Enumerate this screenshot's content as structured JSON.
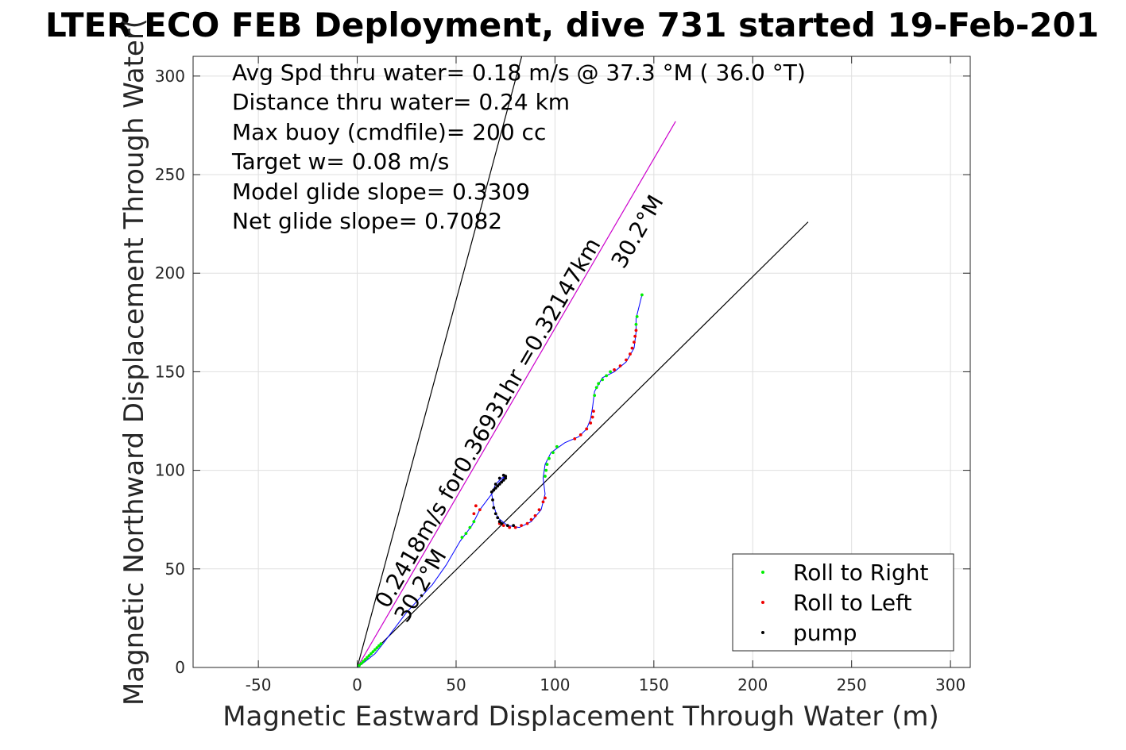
{
  "chart_data": {
    "type": "scatter",
    "title": "LTER ECO FEB Deployment, dive 731 started 19-Feb-201",
    "xlabel": "Magnetic Eastward Displacement Through Water (m)",
    "ylabel": "Magnetic Northward Displacement Through Water(",
    "xlim": [
      -83,
      310
    ],
    "ylim": [
      0,
      310
    ],
    "x_ticks": [
      -50,
      0,
      50,
      100,
      150,
      200,
      250,
      300
    ],
    "y_ticks": [
      0,
      50,
      100,
      150,
      200,
      250,
      300
    ],
    "grid": true,
    "legend_position": "bottom-right",
    "annotations": [
      "Avg Spd thru water=  0.18 m/s @  37.3 °M ( 36.0 °T)",
      "Distance thru water=  0.24 km",
      "Max buoy (cmdfile)= 200 cc",
      "Target w= 0.08 m/s",
      "Model glide slope= 0.3309",
      "Net glide slope= 0.7082"
    ],
    "rotated_labels": [
      {
        "text": "0.2418m/s for0.36931hr =0.32147km",
        "anchor": [
          10,
          30
        ]
      },
      {
        "text": "30.2°M",
        "anchor": [
          26,
          22
        ]
      },
      {
        "text": "30.2°M",
        "anchor": [
          135,
          208
        ]
      }
    ],
    "lines": [
      {
        "name": "left-heading",
        "color": "#000000",
        "points": [
          [
            0,
            0
          ],
          [
            84,
            313
          ]
        ]
      },
      {
        "name": "right-heading",
        "color": "#000000",
        "points": [
          [
            0,
            0
          ],
          [
            228,
            226
          ]
        ]
      },
      {
        "name": "course-line",
        "color": "#cc00cc",
        "points": [
          [
            0,
            0
          ],
          [
            161,
            277
          ]
        ]
      }
    ],
    "track": {
      "color": "#0000ff",
      "points": [
        [
          0,
          0
        ],
        [
          4,
          3
        ],
        [
          9,
          7
        ],
        [
          13,
          12
        ],
        [
          25,
          28
        ],
        [
          38,
          42
        ],
        [
          45,
          52
        ],
        [
          52,
          64
        ],
        [
          58,
          72
        ],
        [
          62,
          80
        ],
        [
          68,
          88
        ],
        [
          72,
          94
        ],
        [
          75,
          97
        ],
        [
          73,
          96
        ],
        [
          70,
          93
        ],
        [
          68,
          88
        ],
        [
          69,
          82
        ],
        [
          71,
          76
        ],
        [
          76,
          72
        ],
        [
          82,
          71
        ],
        [
          88,
          74
        ],
        [
          93,
          80
        ],
        [
          95,
          88
        ],
        [
          94,
          96
        ],
        [
          95,
          103
        ],
        [
          98,
          109
        ],
        [
          105,
          114
        ],
        [
          112,
          117
        ],
        [
          116,
          121
        ],
        [
          118,
          126
        ],
        [
          119,
          132
        ],
        [
          120,
          140
        ],
        [
          124,
          147
        ],
        [
          130,
          150
        ],
        [
          136,
          155
        ],
        [
          140,
          162
        ],
        [
          141,
          170
        ],
        [
          141,
          177
        ],
        [
          144,
          189
        ]
      ]
    },
    "series": [
      {
        "name": "Roll to Right",
        "color": "#00ee00",
        "x": [
          1,
          2,
          3,
          4,
          5,
          6,
          7,
          8,
          9,
          10,
          11,
          12,
          53,
          55,
          57,
          59,
          95,
          95.5,
          96,
          97,
          99,
          101,
          120,
          121,
          122,
          124,
          126,
          128,
          141,
          141.5,
          144
        ],
        "y": [
          1,
          2,
          3,
          4,
          5,
          6,
          7,
          8,
          9,
          10,
          11,
          12,
          66,
          68,
          71,
          74,
          97,
          100,
          103,
          106,
          109,
          112,
          138,
          142,
          144,
          146,
          148,
          150,
          174,
          178,
          189
        ]
      },
      {
        "name": "Roll to Left",
        "color": "#ee0000",
        "x": [
          62,
          60,
          59,
          72,
          74,
          77,
          80,
          83,
          86,
          88,
          90,
          92,
          94,
          95,
          110,
          113,
          116,
          118,
          119,
          119.5,
          130,
          133,
          136,
          138,
          139,
          140,
          140.5,
          141
        ],
        "y": [
          80,
          82,
          78,
          73,
          72,
          71,
          71,
          72,
          73,
          75,
          77,
          80,
          84,
          86,
          116,
          118,
          121,
          124,
          127,
          130,
          151,
          153,
          156,
          159,
          162,
          165,
          168,
          171
        ]
      },
      {
        "name": "pump",
        "color": "#000000",
        "x": [
          68,
          69,
          70,
          71,
          72,
          73,
          74,
          75,
          75,
          74,
          72,
          70,
          69,
          68.5,
          69,
          70,
          71,
          72,
          73,
          76,
          79
        ],
        "y": [
          89,
          90,
          91,
          92,
          93,
          94,
          95,
          96,
          97,
          97.5,
          96,
          93,
          90,
          85,
          81,
          78,
          76,
          74,
          73,
          72,
          72
        ]
      }
    ]
  }
}
